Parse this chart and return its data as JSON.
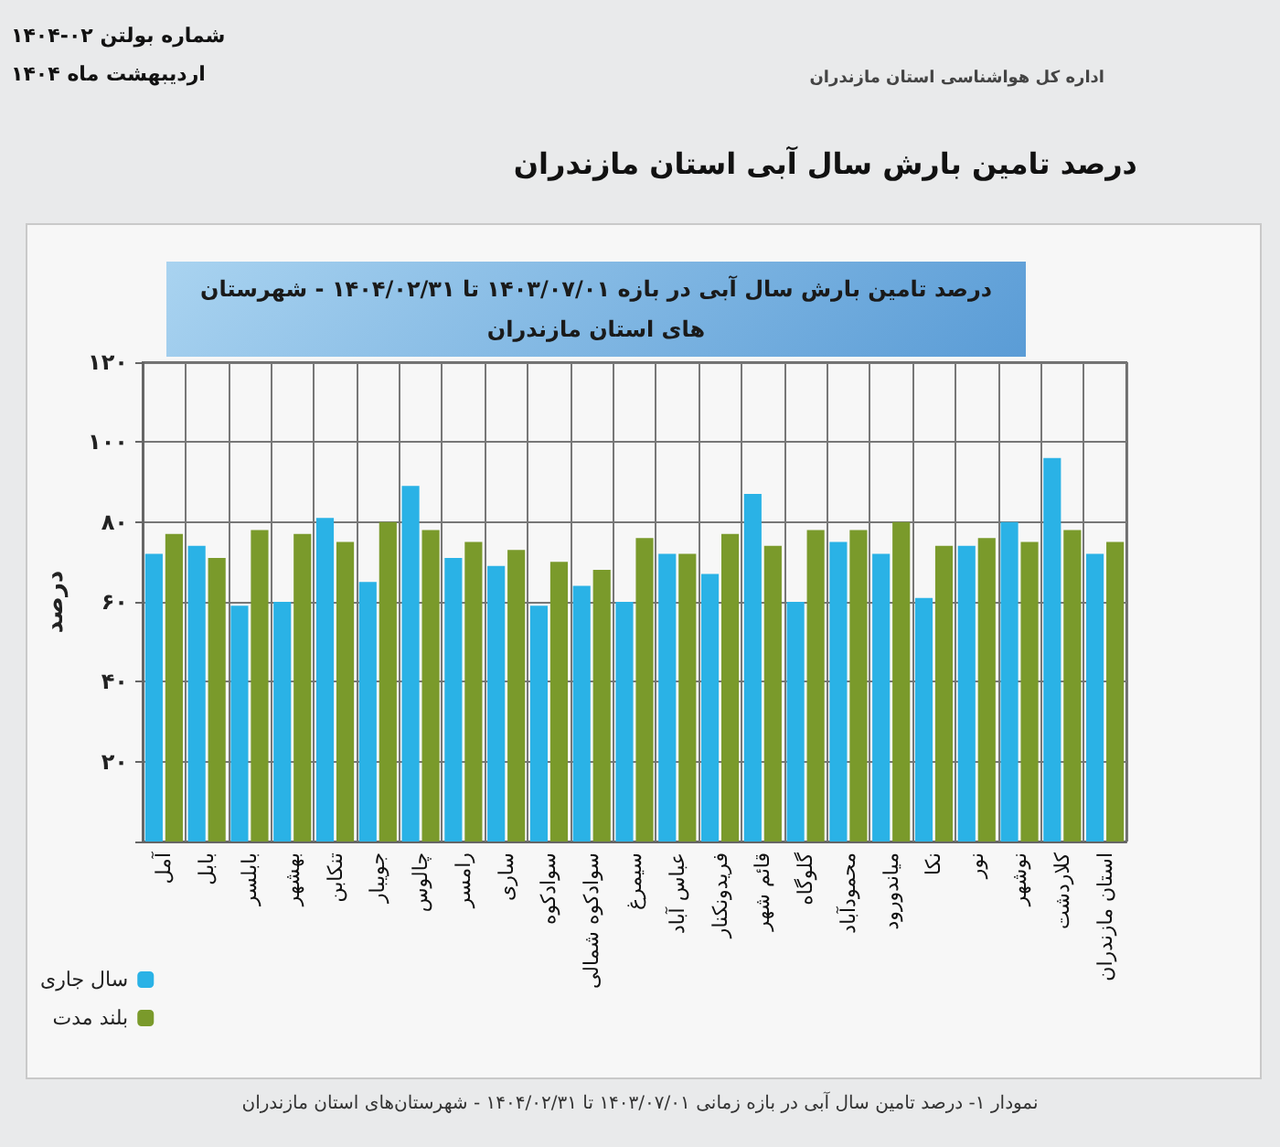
{
  "chart_data": {
    "type": "bar",
    "title": "درصد تامین بارش سال آبی استان مازندران",
    "subtitle": "درصد تامین بارش سال آبی در بازه ۱۴۰۳/۰۷/۰۱ تا ۱۴۰۴/۰۲/۳۱ - شهرستان های استان مازندران",
    "ylabel": "درصد",
    "annotations": [
      "شماره بولتن ۰۲-۱۴۰۴",
      "اردیبهشت ماه ۱۴۰۴",
      "اداره کل هواشناسی استان مازندران",
      "نمودار ۱- درصد تامین سال آبی در بازه زمانی ۱۴۰۳/۰۷/۰۱ تا ۱۴۰۴/۰۲/۳۱ - شهرستان‌های استان مازندران"
    ],
    "categories": [
      "آمل",
      "بابل",
      "بابلسر",
      "بهشهر",
      "تنکابن",
      "جویبار",
      "چالوس",
      "رامسر",
      "ساری",
      "سوادکوه",
      "سوادکوه شمالی",
      "سیمرغ",
      "عباس آباد",
      "فریدونکنار",
      "قائم شهر",
      "گلوگاه",
      "محمودآباد",
      "میاندورود",
      "نکا",
      "نور",
      "نوشهر",
      "کلاردشت",
      "استان مازندران"
    ],
    "series": [
      {
        "name": "سال جاری",
        "color": "#2ab2e6",
        "values": [
          72,
          74,
          59,
          60,
          81,
          65,
          89,
          71,
          69,
          59,
          64,
          60,
          72,
          67,
          87,
          60,
          75,
          72,
          61,
          74,
          80,
          96,
          72
        ]
      },
      {
        "name": "بلند مدت",
        "color": "#7a9a2b",
        "values": [
          77,
          71,
          78,
          77,
          75,
          80,
          78,
          75,
          73,
          70,
          68,
          76,
          72,
          77,
          74,
          78,
          78,
          80,
          74,
          76,
          75,
          78,
          75
        ]
      }
    ],
    "ylim": [
      0,
      120
    ],
    "yticks": [
      {
        "value": 0,
        "label": null
      },
      {
        "value": 20,
        "label": "۲۰"
      },
      {
        "value": 40,
        "label": "۴۰"
      },
      {
        "value": 60,
        "label": "۶۰"
      },
      {
        "value": 80,
        "label": "۸۰"
      },
      {
        "value": 100,
        "label": "۱۰۰"
      },
      {
        "value": 120,
        "label": "۱۲۰"
      }
    ],
    "grid": true,
    "legend": "bottom left"
  }
}
